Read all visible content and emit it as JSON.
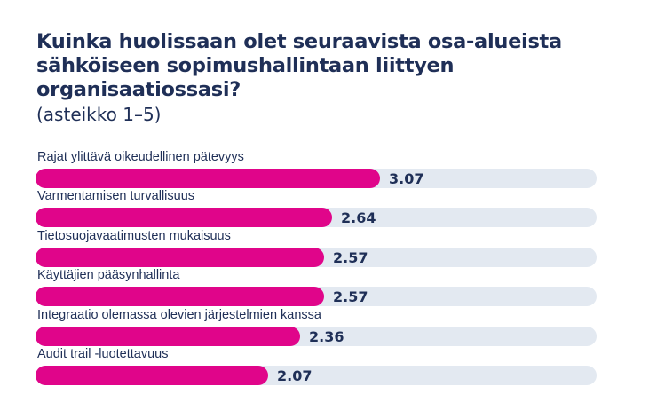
{
  "title": "Kuinka huolissaan olet seuraavista osa-alueista sähköiseen sopimushallintaan liittyen organisaatiossasi?",
  "subtitle": "(asteikko 1–5)",
  "colors": {
    "bar": "#e0058a",
    "track": "#e3e9f1",
    "text": "#1f2f57"
  },
  "chart_data": {
    "type": "bar",
    "orientation": "horizontal",
    "categories": [
      "Rajat ylittävä oikeudellinen pätevyys",
      "Varmentamisen turvallisuus",
      "Tietosuojavaatimusten mukaisuus",
      "Käyttäjien pääsynhallinta",
      "Integraatio olemassa olevien järjestelmien kanssa",
      "Audit trail -luotettavuus"
    ],
    "values": [
      3.07,
      2.64,
      2.57,
      2.57,
      2.36,
      2.07
    ],
    "value_labels": [
      "3.07",
      "2.64",
      "2.57",
      "2.57",
      "2.36",
      "2.07"
    ],
    "xlim": [
      0,
      5
    ],
    "grid": false,
    "legend": "none"
  }
}
